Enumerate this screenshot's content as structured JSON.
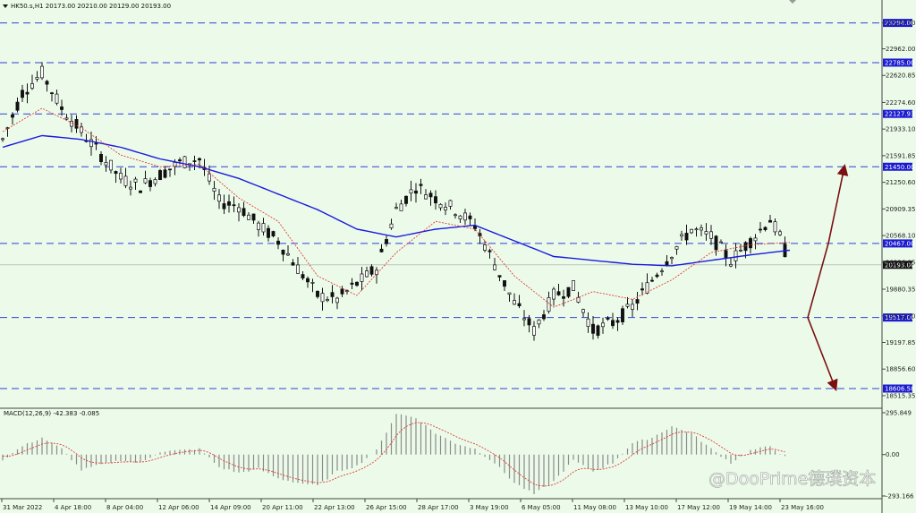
{
  "header": {
    "symbol_line": "HK50.s,H1  20173.00 20210.00 20129.00 20193.00",
    "macd_line": "MACD(12,26,9) -42.383 -0.085"
  },
  "watermark": "@DooPrime德璞资本",
  "colors": {
    "background": "#ecfbe9",
    "candle": "#111111",
    "ma_slow": "#1a1adf",
    "ma_fast": "#e03a3a",
    "level_line": "#2f3fd6",
    "level_box": "#1b1bd0",
    "arrow": "#7a1010",
    "macd_hist": "#8a8a8a",
    "macd_signal": "#e03a3a"
  },
  "chart_data": {
    "type": "candlestick",
    "timeframe": "H1",
    "ylim": [
      18400,
      23450
    ],
    "y_ticks": [
      23294.0,
      22962.0,
      22620.85,
      22274.6,
      21933.1,
      21591.85,
      21250.6,
      20909.35,
      20568.1,
      20226.85,
      19880.35,
      19539.1,
      19197.85,
      18856.6,
      18515.35
    ],
    "y_ticks_shown": [
      "23294.00",
      "22962.00",
      "22620.85",
      "22274.60",
      "21933.10",
      "21591.85",
      "21250.60",
      "20909.35",
      "20568.10",
      "20226.85",
      "19880.35",
      "19539.10",
      "19197.85",
      "18856.60",
      "18515.35"
    ],
    "x_ticks": [
      "31 Mar 2022",
      "4 Apr 18:00",
      "8 Apr 04:00",
      "12 Apr 06:00",
      "14 Apr 09:00",
      "20 Apr 11:00",
      "22 Apr 13:00",
      "26 Apr 15:00",
      "28 Apr 17:00",
      "3 May 19:00",
      "6 May 05:00",
      "11 May 08:00",
      "13 May 10:00",
      "17 May 12:00",
      "19 May 14:00",
      "23 May 16:00"
    ],
    "levels": [
      {
        "value": 23294.0,
        "label": "23294.00"
      },
      {
        "value": 22785.0,
        "label": "22785.00"
      },
      {
        "value": 22127.93,
        "label": "22127.93"
      },
      {
        "value": 21450.0,
        "label": "21450.00"
      },
      {
        "value": 20467.0,
        "label": "20467.00"
      },
      {
        "value": 19517.0,
        "label": "19517.00"
      },
      {
        "value": 18606.58,
        "label": "18606.58"
      }
    ],
    "current_price": {
      "value": 20193.0,
      "label": "20193.00"
    },
    "price_path": [
      [
        0,
        21800
      ],
      [
        4,
        22400
      ],
      [
        8,
        22650
      ],
      [
        12,
        22200
      ],
      [
        16,
        21900
      ],
      [
        20,
        21600
      ],
      [
        24,
        21300
      ],
      [
        28,
        21200
      ],
      [
        32,
        21350
      ],
      [
        36,
        21500
      ],
      [
        40,
        21550
      ],
      [
        44,
        21000
      ],
      [
        48,
        20950
      ],
      [
        52,
        20700
      ],
      [
        56,
        20500
      ],
      [
        60,
        20150
      ],
      [
        64,
        19800
      ],
      [
        68,
        19750
      ],
      [
        72,
        19950
      ],
      [
        76,
        20150
      ],
      [
        80,
        20900
      ],
      [
        84,
        21200
      ],
      [
        88,
        21050
      ],
      [
        92,
        20900
      ],
      [
        96,
        20700
      ],
      [
        100,
        20200
      ],
      [
        104,
        19700
      ],
      [
        108,
        19350
      ],
      [
        112,
        19800
      ],
      [
        116,
        19900
      ],
      [
        120,
        19350
      ],
      [
        124,
        19450
      ],
      [
        128,
        19650
      ],
      [
        132,
        20000
      ],
      [
        136,
        20350
      ],
      [
        140,
        20650
      ],
      [
        144,
        20550
      ],
      [
        148,
        20250
      ],
      [
        152,
        20500
      ],
      [
        156,
        20780
      ],
      [
        158,
        20550
      ],
      [
        160,
        20193
      ]
    ],
    "ma_slow": [
      [
        0,
        21700
      ],
      [
        8,
        21850
      ],
      [
        16,
        21800
      ],
      [
        24,
        21700
      ],
      [
        32,
        21550
      ],
      [
        40,
        21450
      ],
      [
        48,
        21300
      ],
      [
        56,
        21100
      ],
      [
        64,
        20900
      ],
      [
        72,
        20650
      ],
      [
        80,
        20550
      ],
      [
        88,
        20650
      ],
      [
        96,
        20700
      ],
      [
        104,
        20500
      ],
      [
        112,
        20300
      ],
      [
        120,
        20250
      ],
      [
        128,
        20200
      ],
      [
        136,
        20180
      ],
      [
        144,
        20250
      ],
      [
        152,
        20320
      ],
      [
        160,
        20380
      ]
    ],
    "ma_fast": [
      [
        0,
        21900
      ],
      [
        8,
        22200
      ],
      [
        16,
        21950
      ],
      [
        24,
        21600
      ],
      [
        32,
        21450
      ],
      [
        40,
        21480
      ],
      [
        48,
        21050
      ],
      [
        56,
        20750
      ],
      [
        64,
        20050
      ],
      [
        72,
        19800
      ],
      [
        80,
        20350
      ],
      [
        88,
        20750
      ],
      [
        96,
        20650
      ],
      [
        104,
        20050
      ],
      [
        112,
        19650
      ],
      [
        120,
        19850
      ],
      [
        128,
        19750
      ],
      [
        136,
        20000
      ],
      [
        144,
        20350
      ],
      [
        152,
        20450
      ],
      [
        160,
        20480
      ]
    ],
    "scenario_arrows": [
      {
        "from": 19517.0,
        "to": 20467.0,
        "then": 21450.0,
        "direction": "up"
      },
      {
        "from": 19517.0,
        "to": 18606.58,
        "direction": "down"
      }
    ],
    "macd": {
      "params": "12,26,9",
      "main": -42.383,
      "signal": -0.085,
      "ylim": [
        -293.166,
        295.849
      ],
      "y_ticks_shown": [
        "295.849",
        "0.00",
        "-293.166"
      ],
      "histogram_path": [
        [
          0,
          -40
        ],
        [
          4,
          60
        ],
        [
          8,
          120
        ],
        [
          12,
          40
        ],
        [
          16,
          -110
        ],
        [
          20,
          -70
        ],
        [
          24,
          -40
        ],
        [
          28,
          -60
        ],
        [
          32,
          20
        ],
        [
          36,
          30
        ],
        [
          40,
          40
        ],
        [
          44,
          -90
        ],
        [
          48,
          -130
        ],
        [
          52,
          -100
        ],
        [
          56,
          -170
        ],
        [
          60,
          -200
        ],
        [
          64,
          -220
        ],
        [
          68,
          -120
        ],
        [
          72,
          -80
        ],
        [
          76,
          30
        ],
        [
          80,
          290
        ],
        [
          84,
          260
        ],
        [
          88,
          150
        ],
        [
          92,
          80
        ],
        [
          96,
          40
        ],
        [
          100,
          -60
        ],
        [
          104,
          -200
        ],
        [
          108,
          -280
        ],
        [
          112,
          -190
        ],
        [
          116,
          -40
        ],
        [
          120,
          -120
        ],
        [
          124,
          -60
        ],
        [
          128,
          80
        ],
        [
          132,
          120
        ],
        [
          136,
          200
        ],
        [
          140,
          150
        ],
        [
          144,
          40
        ],
        [
          148,
          -60
        ],
        [
          152,
          30
        ],
        [
          156,
          60
        ],
        [
          160,
          -42
        ]
      ]
    }
  }
}
